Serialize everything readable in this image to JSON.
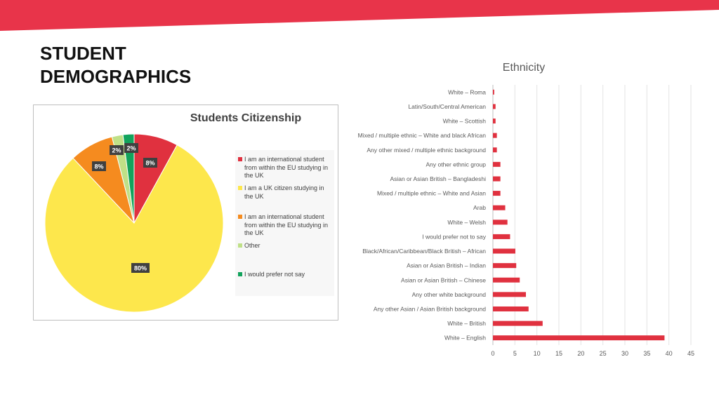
{
  "slide": {
    "title_lines": [
      "STUDENT",
      "DEMOGRAPHICS"
    ],
    "banner_color": "#E8344A"
  },
  "chart_data": [
    {
      "type": "pie",
      "title": "Students Citizenship",
      "legend_position": "right",
      "slices": [
        {
          "label": "I am an international student from within the EU studying in the UK",
          "value": 8,
          "data_label": "8%",
          "color": "#E0313F"
        },
        {
          "label": "I am a UK citizen studying in the UK",
          "value": 80,
          "data_label": "80%",
          "color": "#FDE74C"
        },
        {
          "label": "I am an international student from within the EU studying in the UK",
          "value": 8,
          "data_label": "8%",
          "color": "#F58B1F"
        },
        {
          "label": "Other",
          "value": 2,
          "data_label": "2%",
          "color": "#BFE087"
        },
        {
          "label": "I would prefer not say",
          "value": 2,
          "data_label": "2%",
          "color": "#12A35C"
        }
      ]
    },
    {
      "type": "bar",
      "orientation": "horizontal",
      "title": "Ethnicity",
      "bar_color": "#E0313F",
      "xlim": [
        0,
        45
      ],
      "x_ticks": [
        0,
        5,
        10,
        15,
        20,
        25,
        30,
        35,
        40,
        45
      ],
      "grid": true,
      "categories": [
        "White – Roma",
        "Latin/South/Central American",
        "White – Scottish",
        "Mixed / multiple ethnic – White and black African",
        "Any other mixed / multiple ethnic background",
        "Any other ethnic group",
        "Asian or Asian British – Bangladeshi",
        "Mixed / multiple ethnic – White and Asian",
        "Arab",
        "White – Welsh",
        "I would prefer not to say",
        "Black/African/Caribbean/Black British – African",
        "Asian or Asian British – Indian",
        "Asian or Asian British – Chinese",
        "Any other white background",
        "Any other Asian / Asian British background",
        "White – British",
        "White – English"
      ],
      "values": [
        0.3,
        0.6,
        0.6,
        0.9,
        0.9,
        1.7,
        1.7,
        1.7,
        2.8,
        3.3,
        3.9,
        5.1,
        5.3,
        6.1,
        7.5,
        8.1,
        11.3,
        39.0
      ]
    }
  ]
}
